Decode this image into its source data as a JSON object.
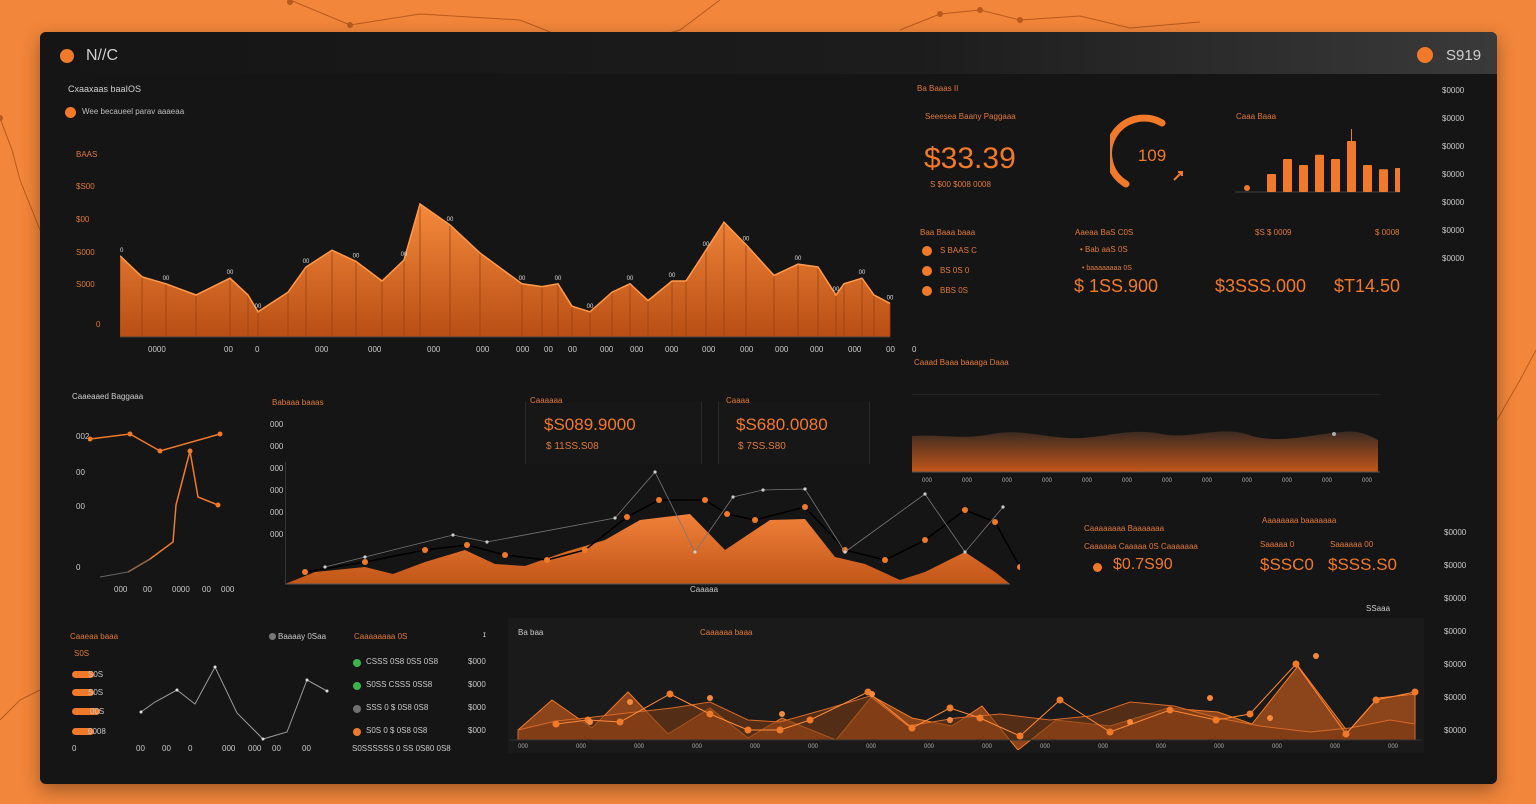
{
  "app": {
    "title": "N//C",
    "right_label": "S919"
  },
  "main_chart": {
    "title": "Cxaaxaas baaIOS",
    "legend": "Wee becaueel parav aaaeaa",
    "ylabels": [
      "BAAS",
      "$S00",
      "$00",
      "S000",
      "S000",
      "0"
    ],
    "xlabels": [
      "0000",
      "00",
      "0",
      "000",
      "000",
      "000",
      "000",
      "000",
      "00",
      "00",
      "000",
      "000",
      "000",
      "000",
      "000",
      "000",
      "000",
      "000",
      "00",
      "0"
    ]
  },
  "kpi": {
    "title": "Ba Baaas II",
    "sub": "Seeesea Baany Paggaaa",
    "value": "$33.39",
    "caption": "S $00 $008 0008",
    "gauge_value": "109",
    "bars_title": "Caaa Baaa",
    "bars": [
      0.3,
      0.55,
      0.45,
      0.62,
      0.55,
      0.85,
      0.45,
      0.38,
      0.4
    ]
  },
  "stats": {
    "col1_title": "Baa Baaa baaa",
    "col1_items": [
      "S BAAS C",
      "BS 0S 0",
      "BBS 0S"
    ],
    "col2_title": "Aaeaa BaS C0S",
    "col2_sub1": "• Bab aaS 0S",
    "col2_sub2": "• baaaaaaaa 0S",
    "col2_value": "$ 1SS.900",
    "col3_value": "$3SSS.000",
    "col3_title": "$S $ 0009",
    "col4_title": "$ 0008",
    "col4_value": "$T14.50"
  },
  "right_rail": [
    "$0000",
    "$0000",
    "$0000",
    "$0000",
    "$0000",
    "$0000",
    "$0000"
  ],
  "right_rail_lower": [
    "$0000",
    "$0000",
    "$0000",
    "$0000",
    "$0000",
    "$0000",
    "$0000"
  ],
  "mini_line": {
    "title": "Caaeaaed Baggaaa",
    "ylabels": [
      "002",
      "00",
      "00",
      "0"
    ],
    "xlabels": [
      "000",
      "00",
      "0000",
      "00",
      "000"
    ]
  },
  "mid_chart": {
    "title": "Babaaa baaas",
    "ylabels": [
      "000",
      "000",
      "000",
      "000",
      "000",
      "000"
    ],
    "box1_title": "Caaaaaa",
    "box1_value": "$S089.9000",
    "box1_sub": "$ 11SS.S08",
    "box2_title": "Caaaa",
    "box2_value": "$S680.0080",
    "box2_sub": "$ 7SS.S80",
    "x_title": "Caaaaa"
  },
  "area_strip": {
    "title": "Caaad Baaa baaaga Daaa"
  },
  "lower_kpis": {
    "title1": "Caaaaaaaa Baaaaaaa",
    "sub1": "Caaaaaa Caaaaa   0S  Caaaaaaa",
    "value1": "$0.7S90",
    "title2": "Aaaaaaaa baaaaaaa",
    "sub2a": "Saaaaa 0",
    "sub2b": "Saaaaaa 00",
    "value2a": "$SSC0",
    "value2b": "$SSS.S0",
    "corner": "SSaaa"
  },
  "bottom_left": {
    "title": "Caaeaa baaa",
    "sub": "S0S",
    "pills": [
      "S0S",
      "S0S",
      "00S",
      "0008"
    ],
    "legend": "Baaaay 0Saa",
    "xlabels": [
      "0",
      "00",
      "00",
      "0",
      "000",
      "000",
      "00",
      "00"
    ]
  },
  "bottom_list": {
    "title": "Caaaaaaaa 0S",
    "items": [
      {
        "label": "CSSS 0S8  0SS 0S8",
        "value": "$000",
        "color": "#3bb54a"
      },
      {
        "label": "S0SS CSSS 0SS8",
        "value": "$000",
        "color": "#3bb54a"
      },
      {
        "label": "SSS 0  $ 0S8 0S8",
        "value": "$000",
        "color": "#707070"
      },
      {
        "label": "S0S 0 $ 0S8 0S8",
        "value": "$000",
        "color": "#f07a2a"
      }
    ],
    "footer": "S0SSSSSS 0 SS 0S80 0S8"
  },
  "bottom_chart": {
    "title": "Caaaaaa baaa",
    "corner": "Ba baa"
  },
  "colors": {
    "accent": "#f07a2a",
    "background": "#151515",
    "page": "#f2863a",
    "green": "#3bb54a"
  }
}
